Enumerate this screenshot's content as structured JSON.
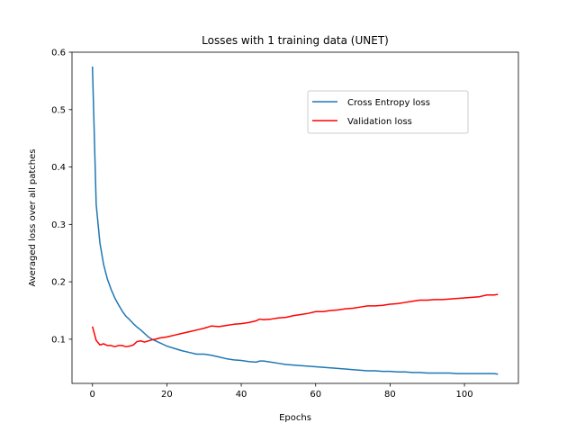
{
  "chart_data": {
    "type": "line",
    "title": "Losses with 1 training data (UNET)",
    "xlabel": "Epochs",
    "ylabel": "Averaged loss over all patches",
    "xlim": [
      -5.5,
      114.5
    ],
    "ylim": [
      0.023,
      0.6
    ],
    "xticks": [
      0,
      20,
      40,
      60,
      80,
      100
    ],
    "yticks": [
      0.1,
      0.2,
      0.3,
      0.4,
      0.5,
      0.6
    ],
    "xtick_labels": [
      "0",
      "20",
      "40",
      "60",
      "80",
      "100"
    ],
    "ytick_labels": [
      "0.1",
      "0.2",
      "0.3",
      "0.4",
      "0.5",
      "0.6"
    ],
    "grid": false,
    "legend_position": "upper-right",
    "series": [
      {
        "name": "Cross Entropy loss",
        "color": "#1f77b4",
        "x": [
          0,
          1,
          2,
          3,
          4,
          5,
          6,
          7,
          8,
          9,
          10,
          11,
          12,
          13,
          14,
          15,
          16,
          17,
          18,
          19,
          20,
          22,
          24,
          26,
          28,
          30,
          32,
          34,
          36,
          38,
          40,
          42,
          44,
          45,
          46,
          48,
          50,
          52,
          54,
          56,
          58,
          60,
          62,
          64,
          66,
          68,
          70,
          72,
          74,
          76,
          78,
          80,
          82,
          84,
          86,
          88,
          90,
          92,
          94,
          96,
          98,
          100,
          102,
          104,
          106,
          108,
          109
        ],
        "y": [
          0.575,
          0.335,
          0.268,
          0.23,
          0.205,
          0.187,
          0.172,
          0.16,
          0.149,
          0.14,
          0.134,
          0.127,
          0.121,
          0.116,
          0.11,
          0.104,
          0.1,
          0.097,
          0.094,
          0.091,
          0.088,
          0.084,
          0.08,
          0.077,
          0.074,
          0.074,
          0.072,
          0.069,
          0.066,
          0.064,
          0.063,
          0.061,
          0.06,
          0.062,
          0.062,
          0.06,
          0.058,
          0.056,
          0.055,
          0.054,
          0.053,
          0.052,
          0.051,
          0.05,
          0.049,
          0.048,
          0.047,
          0.046,
          0.045,
          0.045,
          0.044,
          0.044,
          0.043,
          0.043,
          0.042,
          0.042,
          0.041,
          0.041,
          0.041,
          0.041,
          0.04,
          0.04,
          0.04,
          0.04,
          0.04,
          0.04,
          0.039
        ]
      },
      {
        "name": "Validation loss",
        "color": "#ff0000",
        "x": [
          0,
          1,
          2,
          3,
          4,
          5,
          6,
          7,
          8,
          9,
          10,
          11,
          12,
          13,
          14,
          15,
          16,
          17,
          18,
          19,
          20,
          22,
          24,
          26,
          28,
          30,
          32,
          34,
          36,
          38,
          40,
          42,
          44,
          45,
          46,
          48,
          50,
          52,
          54,
          56,
          58,
          60,
          62,
          64,
          66,
          68,
          70,
          72,
          74,
          76,
          78,
          80,
          82,
          84,
          86,
          88,
          90,
          92,
          94,
          96,
          98,
          100,
          102,
          104,
          106,
          108,
          109
        ],
        "y": [
          0.122,
          0.098,
          0.09,
          0.092,
          0.089,
          0.089,
          0.087,
          0.089,
          0.089,
          0.087,
          0.088,
          0.09,
          0.096,
          0.097,
          0.095,
          0.097,
          0.099,
          0.1,
          0.102,
          0.103,
          0.104,
          0.107,
          0.11,
          0.113,
          0.116,
          0.119,
          0.123,
          0.122,
          0.124,
          0.126,
          0.127,
          0.129,
          0.132,
          0.135,
          0.134,
          0.135,
          0.137,
          0.138,
          0.141,
          0.143,
          0.145,
          0.148,
          0.148,
          0.15,
          0.151,
          0.153,
          0.154,
          0.156,
          0.158,
          0.158,
          0.159,
          0.161,
          0.162,
          0.164,
          0.166,
          0.168,
          0.168,
          0.169,
          0.169,
          0.17,
          0.171,
          0.172,
          0.173,
          0.174,
          0.177,
          0.177,
          0.178
        ]
      }
    ]
  }
}
